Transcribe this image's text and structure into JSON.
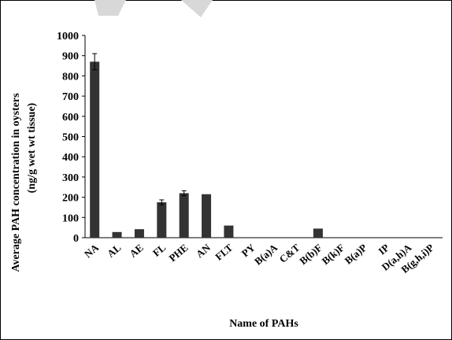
{
  "chart_data": {
    "type": "bar",
    "ylabel": "Average PAH concentration in oysters",
    "ylabel_unit": "(ng/g wet wt tissue)",
    "xlabel": "Name of PAHs",
    "ylim": [
      0,
      1000
    ],
    "yticks": [
      0,
      100,
      200,
      300,
      400,
      500,
      600,
      700,
      800,
      900,
      1000
    ],
    "grid": false,
    "legend": "none",
    "categories": [
      "NA",
      "AL",
      "AE",
      "FL",
      "PHE",
      "AN",
      "FLT",
      "PY",
      "B(a)A",
      "C&T",
      "B(b)F",
      "B(k)F",
      "B(a)P",
      "IP",
      "D(a,h)A",
      "B(g,h,i)P"
    ],
    "values": [
      870,
      28,
      42,
      175,
      220,
      215,
      60,
      0,
      0,
      0,
      45,
      0,
      0,
      0,
      0,
      0
    ],
    "errors": [
      40,
      0,
      0,
      12,
      12,
      0,
      0,
      0,
      0,
      0,
      0,
      0,
      0,
      0,
      0,
      0
    ],
    "bar_color": "#333333"
  }
}
